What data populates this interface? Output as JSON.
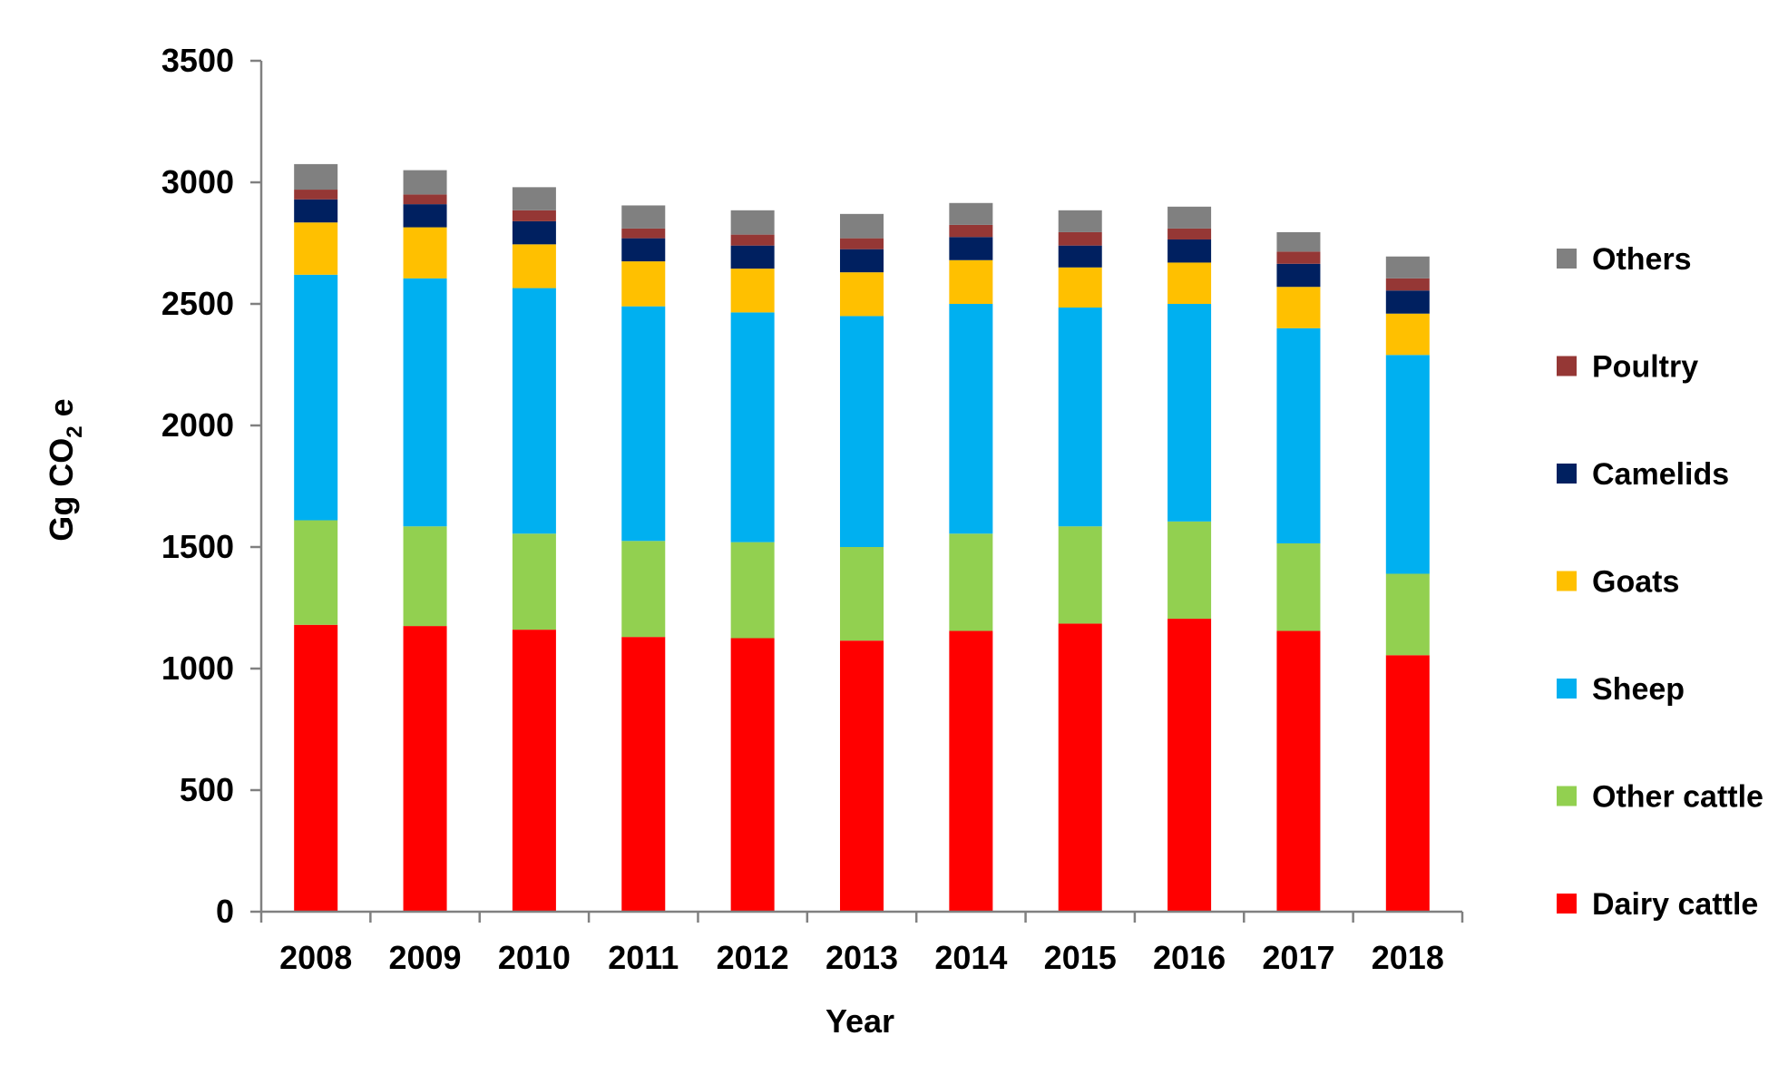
{
  "chart_data": {
    "type": "bar",
    "stacked": true,
    "title": "",
    "xlabel": "Year",
    "ylabel": {
      "main": "Gg CO",
      "subscript": "2",
      "suffix": " e"
    },
    "ylim": [
      0,
      3500
    ],
    "yticks": [
      0,
      500,
      1000,
      1500,
      2000,
      2500,
      3000,
      3500
    ],
    "grid": false,
    "legend_position": "right",
    "categories": [
      "2008",
      "2009",
      "2010",
      "2011",
      "2012",
      "2013",
      "2014",
      "2015",
      "2016",
      "2017",
      "2018"
    ],
    "series": [
      {
        "name": "Dairy cattle",
        "color": "#ff0000",
        "values": [
          1180,
          1175,
          1160,
          1130,
          1125,
          1115,
          1155,
          1185,
          1205,
          1155,
          1055
        ]
      },
      {
        "name": "Other cattle",
        "color": "#92d050",
        "values": [
          430,
          410,
          395,
          395,
          395,
          385,
          400,
          400,
          400,
          360,
          335
        ]
      },
      {
        "name": "Sheep",
        "color": "#00b0f0",
        "values": [
          1010,
          1020,
          1010,
          965,
          945,
          950,
          945,
          900,
          895,
          885,
          900
        ]
      },
      {
        "name": "Goats",
        "color": "#ffc000",
        "values": [
          215,
          210,
          180,
          185,
          180,
          180,
          180,
          165,
          170,
          170,
          170
        ]
      },
      {
        "name": "Camelids",
        "color": "#002060",
        "values": [
          95,
          95,
          95,
          95,
          95,
          95,
          95,
          90,
          95,
          95,
          95
        ]
      },
      {
        "name": "Poultry",
        "color": "#953735",
        "values": [
          40,
          40,
          45,
          40,
          45,
          45,
          50,
          55,
          45,
          50,
          50
        ]
      },
      {
        "name": "Others",
        "color": "#808080",
        "values": [
          105,
          100,
          95,
          95,
          100,
          100,
          90,
          90,
          90,
          80,
          90
        ]
      }
    ]
  }
}
